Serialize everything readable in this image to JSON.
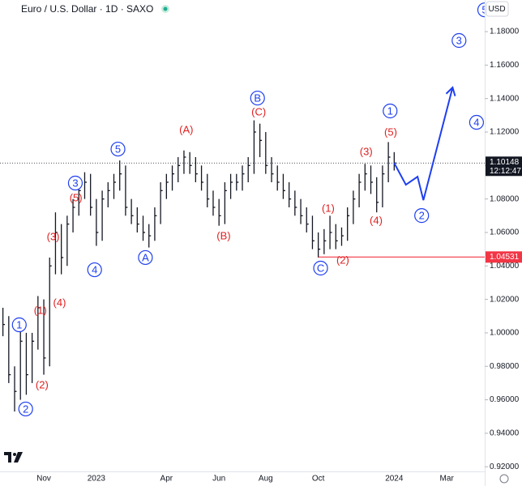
{
  "header": {
    "title": "Euro / U.S. Dollar · 1D · SAXO",
    "currency": "USD"
  },
  "chart_data": {
    "type": "ohlc",
    "categories": [
      null,
      null,
      null,
      null,
      null,
      null,
      null,
      "Nov",
      null,
      null,
      null,
      null,
      null,
      null,
      null,
      null,
      "2023",
      null,
      null,
      null,
      null,
      null,
      null,
      null,
      null,
      null,
      null,
      null,
      "Apr",
      null,
      null,
      null,
      null,
      null,
      null,
      null,
      null,
      "Jun",
      null,
      null,
      null,
      null,
      null,
      null,
      null,
      "Aug",
      null,
      null,
      null,
      null,
      null,
      null,
      null,
      null,
      "Oct",
      null,
      null,
      null,
      null,
      null,
      null,
      null,
      null,
      null,
      null,
      null,
      null,
      "2024",
      null,
      null,
      null,
      null,
      null,
      null,
      null,
      null,
      "Mar",
      null,
      null,
      null,
      null,
      null,
      null
    ],
    "series": [
      {
        "color": "#131722",
        "high": [
          1.015,
          1.01,
          0.98,
          1.003,
          1.0,
          1.0,
          1.022,
          1.02,
          1.045,
          1.072,
          1.065,
          1.07,
          1.08,
          1.09,
          1.096,
          1.095,
          1.08,
          1.085,
          1.09,
          1.095,
          1.103,
          1.1,
          1.08,
          1.075,
          1.07,
          1.065,
          1.075,
          1.09,
          1.095,
          1.1,
          1.105,
          1.109,
          1.108,
          1.105,
          1.1,
          1.095,
          1.085,
          1.08,
          1.09,
          1.095,
          1.095,
          1.1,
          1.105,
          1.127,
          1.125,
          1.12,
          1.105,
          1.1,
          1.095,
          1.09,
          1.085,
          1.08,
          1.075,
          1.07,
          1.06,
          1.062,
          1.07,
          1.065,
          1.063,
          1.075,
          1.085,
          1.095,
          1.101,
          1.1,
          1.093,
          1.1,
          1.114,
          1.108,
          null,
          null,
          null,
          null,
          null,
          null,
          null,
          null,
          null,
          null,
          null,
          null,
          null,
          null,
          null
        ],
        "low": [
          0.998,
          0.97,
          0.953,
          0.96,
          0.963,
          0.97,
          0.99,
          0.975,
          0.98,
          1.035,
          1.035,
          1.04,
          1.06,
          1.07,
          1.08,
          1.07,
          1.052,
          1.055,
          1.075,
          1.08,
          1.085,
          1.07,
          1.065,
          1.06,
          1.055,
          1.051,
          1.055,
          1.065,
          1.08,
          1.085,
          1.09,
          1.095,
          1.095,
          1.09,
          1.085,
          1.075,
          1.07,
          1.064,
          1.065,
          1.08,
          1.085,
          1.085,
          1.09,
          1.095,
          1.105,
          1.095,
          1.09,
          1.085,
          1.08,
          1.075,
          1.07,
          1.065,
          1.06,
          1.05,
          1.045,
          1.047,
          1.05,
          1.05,
          1.052,
          1.055,
          1.065,
          1.075,
          1.085,
          1.083,
          1.072,
          1.075,
          1.09,
          1.097,
          null,
          null,
          null,
          null,
          null,
          null,
          null,
          null,
          null,
          null,
          null,
          null,
          null,
          null,
          null
        ],
        "close": [
          1.005,
          0.975,
          0.965,
          0.995,
          0.975,
          0.995,
          1.015,
          0.985,
          1.04,
          1.06,
          1.045,
          1.065,
          1.075,
          1.085,
          1.09,
          1.075,
          1.06,
          1.08,
          1.085,
          1.09,
          1.095,
          1.075,
          1.07,
          1.065,
          1.06,
          1.058,
          1.07,
          1.085,
          1.09,
          1.095,
          1.1,
          1.105,
          1.1,
          1.095,
          1.09,
          1.08,
          1.075,
          1.07,
          1.085,
          1.09,
          1.09,
          1.095,
          1.1,
          1.12,
          1.115,
          1.1,
          1.095,
          1.09,
          1.085,
          1.08,
          1.075,
          1.07,
          1.065,
          1.055,
          1.05,
          1.055,
          1.06,
          1.055,
          1.058,
          1.07,
          1.08,
          1.09,
          1.095,
          1.09,
          1.078,
          1.095,
          1.105,
          1.10148,
          null,
          null,
          null,
          null,
          null,
          null,
          null,
          null,
          null,
          null,
          null,
          null,
          null,
          null,
          null
        ]
      }
    ],
    "projection": {
      "color": "#1e3ff0",
      "x": [
        67,
        69,
        71,
        72,
        77
      ],
      "values": [
        1.10148,
        1.0885,
        1.0933,
        1.0793,
        1.1466
      ]
    },
    "last_price": 1.10148,
    "countdown": "12:12:47",
    "support": {
      "value": 1.04531,
      "color": "#f23645"
    },
    "ylim": [
      0.9172,
      1.1989
    ],
    "yticks": [
      {
        "value": 0.92,
        "label": "0.92000"
      },
      {
        "value": 0.94,
        "label": "0.94000"
      },
      {
        "value": 0.96,
        "label": "0.96000"
      },
      {
        "value": 0.98,
        "label": "0.98000"
      },
      {
        "value": 1.0,
        "label": "1.00000"
      },
      {
        "value": 1.02,
        "label": "1.02000"
      },
      {
        "value": 1.04,
        "label": "1.04000"
      },
      {
        "value": 1.06,
        "label": "1.06000"
      },
      {
        "value": 1.08,
        "label": "1.08000"
      },
      {
        "value": 1.1,
        "label": "1.10000"
      },
      {
        "value": 1.12,
        "label": "1.12000"
      },
      {
        "value": 1.14,
        "label": "1.14000"
      },
      {
        "value": 1.16,
        "label": "1.16000"
      },
      {
        "value": 1.18,
        "label": "1.18000"
      }
    ],
    "annotations": [
      {
        "text": "1",
        "x": 2.8,
        "y": 1.0048,
        "color": "#1e3ff0"
      },
      {
        "text": "2",
        "x": 3.9,
        "y": 0.9545,
        "color": "#1e3ff0"
      },
      {
        "text": "(1)",
        "x": 6.4,
        "y": 1.0135,
        "color": "#e02020"
      },
      {
        "text": "(2)",
        "x": 6.7,
        "y": 0.969,
        "color": "#e02020"
      },
      {
        "text": "(3)",
        "x": 8.6,
        "y": 1.0575,
        "color": "#e02020"
      },
      {
        "text": "(4)",
        "x": 9.7,
        "y": 1.018,
        "color": "#e02020"
      },
      {
        "text": "3",
        "x": 12.4,
        "y": 1.0895,
        "color": "#1e3ff0"
      },
      {
        "text": "(5)",
        "x": 12.5,
        "y": 1.0808,
        "color": "#e02020"
      },
      {
        "text": "4",
        "x": 15.7,
        "y": 1.0377,
        "color": "#1e3ff0"
      },
      {
        "text": "5",
        "x": 19.7,
        "y": 1.1098,
        "color": "#1e3ff0"
      },
      {
        "text": "A",
        "x": 24.4,
        "y": 1.045,
        "color": "#1e3ff0"
      },
      {
        "text": "(A)",
        "x": 31.4,
        "y": 1.1214,
        "color": "#e02020"
      },
      {
        "text": "(B)",
        "x": 37.8,
        "y": 1.058,
        "color": "#e02020"
      },
      {
        "text": "B",
        "x": 43.6,
        "y": 1.1403,
        "color": "#1e3ff0"
      },
      {
        "text": "(C)",
        "x": 43.8,
        "y": 1.132,
        "color": "#e02020"
      },
      {
        "text": "C",
        "x": 54.4,
        "y": 1.0387,
        "color": "#1e3ff0"
      },
      {
        "text": "(1)",
        "x": 55.7,
        "y": 1.0745,
        "color": "#e02020"
      },
      {
        "text": "(2)",
        "x": 58.2,
        "y": 1.0435,
        "color": "#e02020"
      },
      {
        "text": "(3)",
        "x": 62.2,
        "y": 1.1084,
        "color": "#e02020"
      },
      {
        "text": "(4)",
        "x": 63.9,
        "y": 1.0672,
        "color": "#e02020"
      },
      {
        "text": "1",
        "x": 66.3,
        "y": 1.1326,
        "color": "#1e3ff0"
      },
      {
        "text": "(5)",
        "x": 66.4,
        "y": 1.12,
        "color": "#e02020"
      },
      {
        "text": "2",
        "x": 71.7,
        "y": 1.0701,
        "color": "#1e3ff0"
      },
      {
        "text": "3",
        "x": 78.1,
        "y": 1.1747,
        "color": "#1e3ff0"
      },
      {
        "text": "4",
        "x": 81.1,
        "y": 1.1258,
        "color": "#1e3ff0"
      },
      {
        "text": "5",
        "x": 82.5,
        "y": 1.193,
        "color": "#1e3ff0"
      }
    ]
  }
}
